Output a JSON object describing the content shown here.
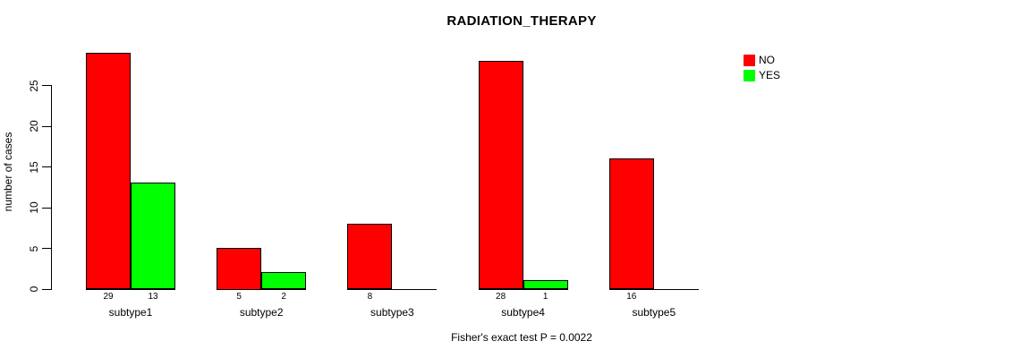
{
  "chart_data": {
    "type": "bar",
    "title": "RADIATION_THERAPY",
    "xlabel": "",
    "ylabel": "number of cases",
    "categories": [
      "subtype1",
      "subtype2",
      "subtype3",
      "subtype4",
      "subtype5"
    ],
    "series": [
      {
        "name": "NO",
        "color": "#ff0000",
        "values": [
          29,
          5,
          8,
          28,
          16
        ]
      },
      {
        "name": "YES",
        "color": "#00ff00",
        "values": [
          13,
          2,
          0,
          1,
          0
        ]
      }
    ],
    "bar_value_labels": {
      "subtype1": [
        "29",
        "13"
      ],
      "subtype2": [
        "5",
        "2"
      ],
      "subtype3": [
        "8",
        ""
      ],
      "subtype4": [
        "28",
        "1"
      ],
      "subtype5": [
        "16",
        ""
      ]
    },
    "value_labels_hidden_when_zero": true,
    "yticks": [
      0,
      5,
      10,
      15,
      20,
      25
    ],
    "ylim": [
      0,
      29
    ],
    "grid": false,
    "legend_position": "top-right",
    "legend_entries": [
      "NO",
      "YES"
    ],
    "annotation": "Fisher's exact test P = 0.0022",
    "bar_border_color": "#000000",
    "background_color": "#ffffff",
    "text_color": "#000000"
  }
}
